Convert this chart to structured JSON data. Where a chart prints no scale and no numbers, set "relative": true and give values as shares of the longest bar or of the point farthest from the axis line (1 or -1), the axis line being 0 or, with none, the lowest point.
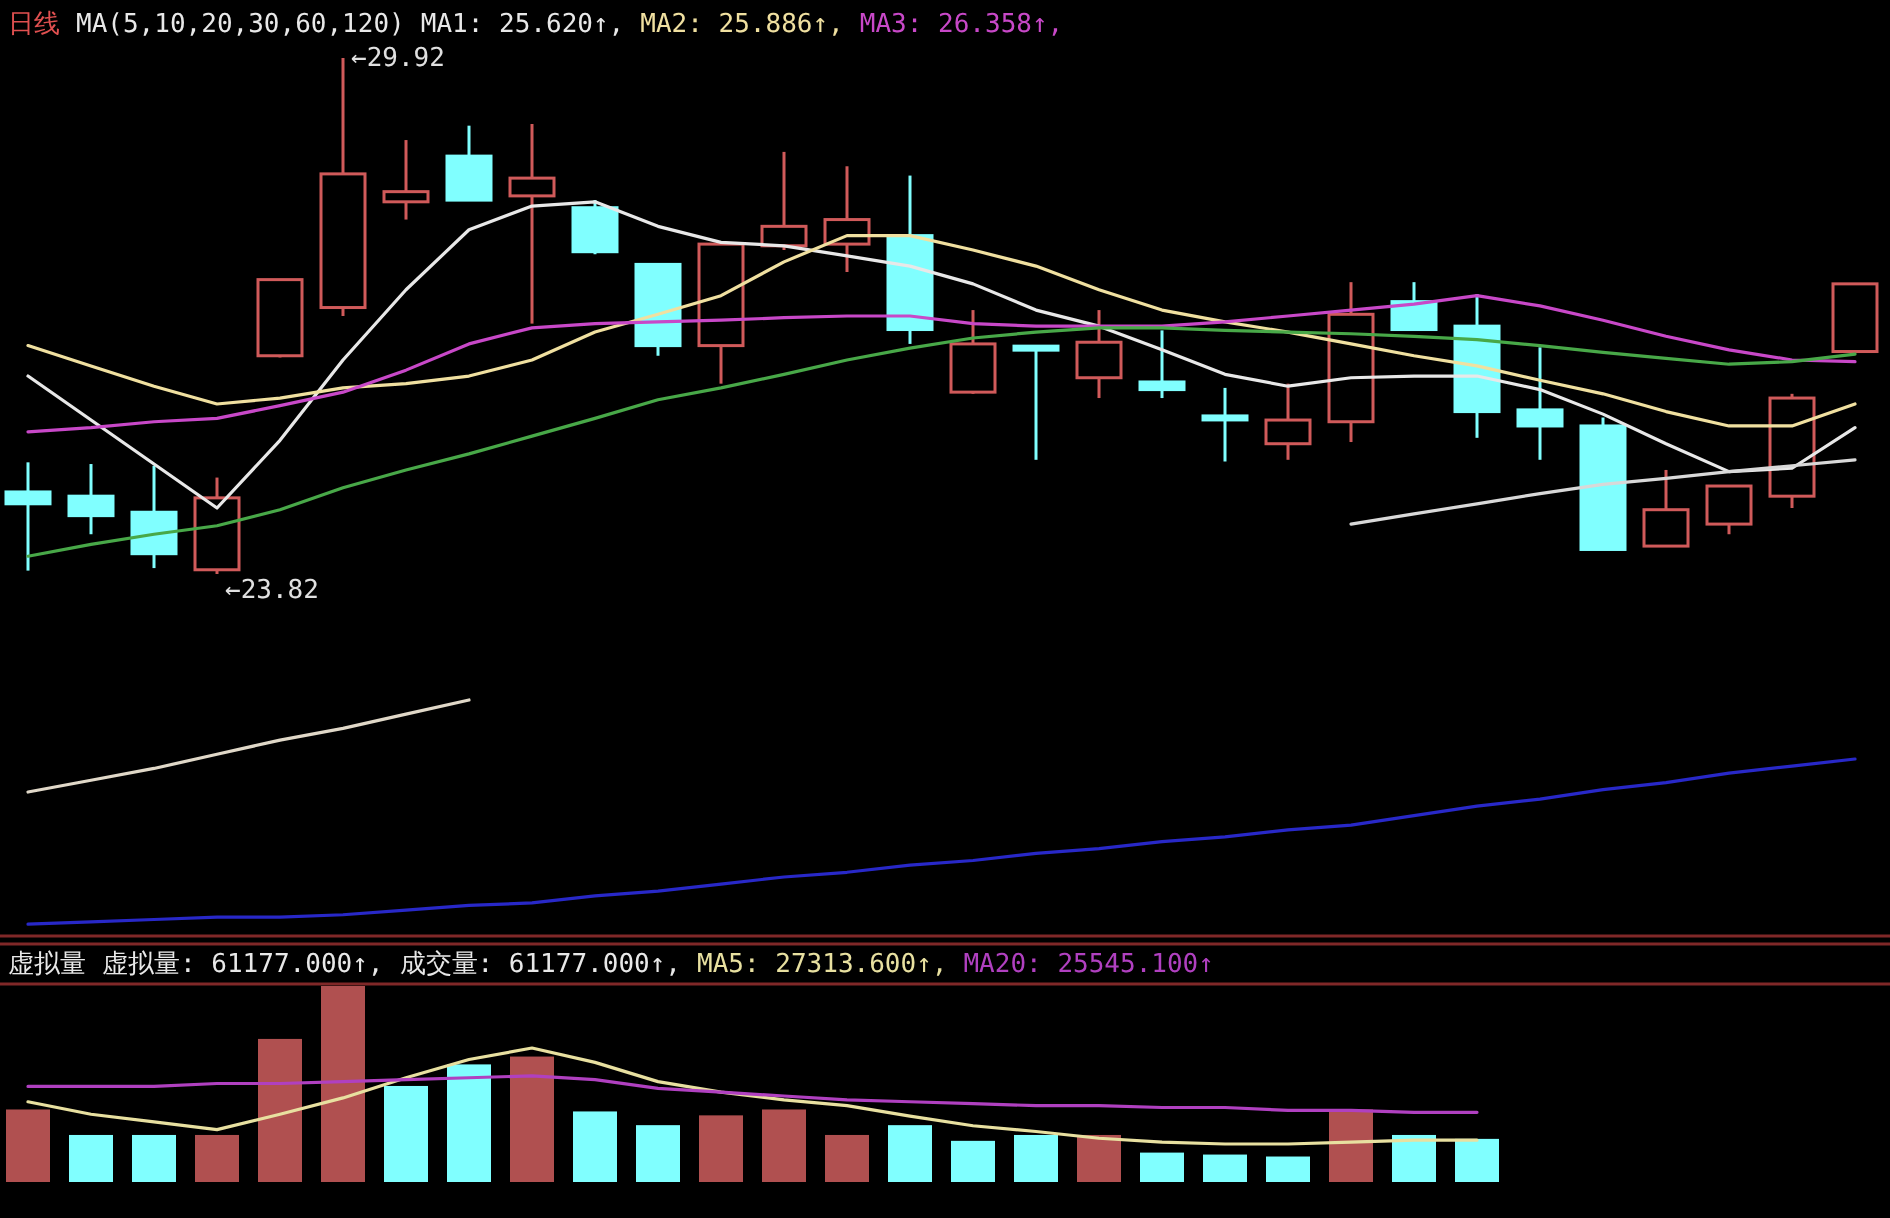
{
  "chart_data": [
    {
      "type": "candlestick",
      "title": "日线",
      "subtitle": "MA(5,10,20,30,60,120)",
      "legend": "top",
      "annotations": [
        "←29.92",
        "←23.82"
      ],
      "categories": [
        null,
        null,
        null,
        null,
        null,
        null,
        null,
        null,
        null,
        null,
        null,
        null,
        null,
        null,
        null,
        null,
        null,
        null,
        null,
        null,
        null,
        null,
        null,
        null,
        null,
        null,
        null,
        null,
        null,
        null
      ],
      "ohlc": [
        [
          24.79,
          25.14,
          23.86,
          24.65
        ],
        [
          24.74,
          25.12,
          24.29,
          24.51
        ],
        [
          24.55,
          25.1,
          23.89,
          24.06
        ],
        [
          23.87,
          24.96,
          23.82,
          24.72
        ],
        [
          26.4,
          27.3,
          26.38,
          27.3
        ],
        [
          26.97,
          29.92,
          26.87,
          28.55
        ],
        [
          28.22,
          28.95,
          28.01,
          28.34
        ],
        [
          28.76,
          29.12,
          28.24,
          28.24
        ],
        [
          28.29,
          29.14,
          26.78,
          28.5
        ],
        [
          28.15,
          28.24,
          27.6,
          27.63
        ],
        [
          27.48,
          27.48,
          26.4,
          26.52
        ],
        [
          26.52,
          27.72,
          26.07,
          27.72
        ],
        [
          27.7,
          28.81,
          27.65,
          27.93
        ],
        [
          27.72,
          28.64,
          27.39,
          28.01
        ],
        [
          27.82,
          28.53,
          26.54,
          26.71
        ],
        [
          25.97,
          26.94,
          25.95,
          26.54
        ],
        [
          26.5,
          26.5,
          25.17,
          26.48
        ],
        [
          26.14,
          26.94,
          25.9,
          26.56
        ],
        [
          26.09,
          26.7,
          25.9,
          26.0
        ],
        [
          25.68,
          26.02,
          25.15,
          25.65
        ],
        [
          25.36,
          26.07,
          25.17,
          25.64
        ],
        [
          25.62,
          27.27,
          25.38,
          26.89
        ],
        [
          27.04,
          27.27,
          26.71,
          26.71
        ],
        [
          26.75,
          27.13,
          25.43,
          25.74
        ],
        [
          25.76,
          26.5,
          25.17,
          25.57
        ],
        [
          25.57,
          25.67,
          24.11,
          24.11
        ],
        [
          24.15,
          25.05,
          24.15,
          24.58
        ],
        [
          24.41,
          24.86,
          24.29,
          24.86
        ],
        [
          24.74,
          25.95,
          24.6,
          25.9
        ],
        [
          26.45,
          27.25,
          26.45,
          27.25
        ]
      ],
      "series": [
        {
          "type": "line",
          "name": "MA1: 25.620↑,",
          "color": "#e8e8e8",
          "values": [
            26.16,
            25.64,
            25.12,
            24.6,
            25.4,
            26.35,
            27.18,
            27.89,
            28.17,
            28.22,
            27.93,
            27.74,
            27.7,
            27.58,
            27.46,
            27.25,
            26.94,
            26.75,
            26.47,
            26.18,
            26.04,
            26.14,
            26.16,
            26.16,
            26.0,
            25.71,
            25.36,
            25.03,
            25.07,
            25.55
          ]
        },
        {
          "type": "line",
          "name": "MA2: 25.886↑,",
          "color": "#f0e0a0",
          "values": [
            26.52,
            26.28,
            26.04,
            25.83,
            25.9,
            26.02,
            26.07,
            26.16,
            26.35,
            26.68,
            26.89,
            27.11,
            27.51,
            27.82,
            27.82,
            27.65,
            27.46,
            27.18,
            26.94,
            26.8,
            26.68,
            26.54,
            26.4,
            26.28,
            26.11,
            25.95,
            25.74,
            25.57,
            25.57,
            25.83
          ]
        },
        {
          "type": "line",
          "name": "MA3: 26.358↑,",
          "color": "#c848c8",
          "values": [
            25.5,
            25.55,
            25.62,
            25.66,
            25.81,
            25.97,
            26.23,
            26.54,
            26.73,
            26.78,
            26.8,
            26.82,
            26.85,
            26.87,
            26.87,
            26.78,
            26.75,
            26.75,
            26.75,
            26.8,
            26.87,
            26.94,
            27.01,
            27.11,
            26.99,
            26.82,
            26.63,
            26.47,
            26.35,
            26.33
          ]
        },
        {
          "type": "line",
          "color": "#48a848",
          "values": [
            24.03,
            24.17,
            24.29,
            24.39,
            24.58,
            24.84,
            25.05,
            25.24,
            25.45,
            25.66,
            25.88,
            26.02,
            26.18,
            26.35,
            26.49,
            26.61,
            26.68,
            26.73,
            26.73,
            26.7,
            26.68,
            26.66,
            26.63,
            26.59,
            26.52,
            26.44,
            26.37,
            26.3,
            26.33,
            26.42
          ]
        },
        {
          "type": "line",
          "color": "#d8d8d8",
          "values": [
            null,
            null,
            null,
            null,
            null,
            null,
            null,
            null,
            null,
            null,
            null,
            null,
            null,
            null,
            null,
            null,
            null,
            null,
            null,
            null,
            null,
            24.41,
            24.53,
            24.65,
            24.77,
            24.88,
            24.95,
            25.03,
            25.1,
            25.17
          ]
        }
      ]
    },
    {
      "type": "line",
      "relative": true,
      "categories": [
        null,
        null,
        null,
        null,
        null,
        null,
        null,
        null,
        null,
        null,
        null,
        null,
        null,
        null,
        null,
        null,
        null,
        null,
        null,
        null,
        null,
        null,
        null,
        null,
        null,
        null,
        null,
        null,
        null,
        null
      ],
      "series": [
        {
          "color": "#2828c8",
          "values": [
            0.05,
            0.06,
            0.07,
            0.08,
            0.08,
            0.09,
            0.11,
            0.13,
            0.14,
            0.17,
            0.19,
            0.22,
            0.25,
            0.27,
            0.3,
            0.32,
            0.35,
            0.37,
            0.4,
            0.42,
            0.45,
            0.47,
            0.51,
            0.55,
            0.58,
            0.62,
            0.65,
            0.69,
            0.72,
            0.75
          ]
        },
        {
          "color": "#e0d8c8",
          "values": [
            0.61,
            0.66,
            0.71,
            0.77,
            0.83,
            0.88,
            0.94,
            1,
            null,
            null,
            null,
            null,
            null,
            null,
            null,
            null,
            null,
            null,
            null,
            null,
            null,
            null,
            null,
            null,
            null,
            null,
            null,
            null,
            null,
            null
          ]
        }
      ]
    },
    {
      "type": "bar",
      "title": "虚拟量",
      "relative": true,
      "annotations": [
        "虚拟量: 61177.000↑,",
        "成交量: 61177.000↑,"
      ],
      "categories": [
        null,
        null,
        null,
        null,
        null,
        null,
        null,
        null,
        null,
        null,
        null,
        null,
        null,
        null,
        null,
        null,
        null,
        null,
        null,
        null,
        null,
        null,
        null,
        null
      ],
      "colors": [
        "#b05050",
        "#80ffff",
        "#80ffff",
        "#b05050",
        "#b05050",
        "#b05050",
        "#80ffff",
        "#80ffff",
        "#b05050",
        "#80ffff",
        "#80ffff",
        "#b05050",
        "#b05050",
        "#b05050",
        "#80ffff",
        "#80ffff",
        "#80ffff",
        "#b05050",
        "#80ffff",
        "#80ffff",
        "#80ffff",
        "#b05050",
        "#80ffff",
        "#80ffff"
      ],
      "values": [
        0.37,
        0.24,
        0.24,
        0.24,
        0.73,
        1,
        0.49,
        0.6,
        0.64,
        0.36,
        0.29,
        0.34,
        0.37,
        0.24,
        0.29,
        0.21,
        0.24,
        0.24,
        0.15,
        0.14,
        0.13,
        0.37,
        0.24,
        0.22
      ]
    },
    {
      "type": "line",
      "relative": true,
      "categories": [
        null,
        null,
        null,
        null,
        null,
        null,
        null,
        null,
        null,
        null,
        null,
        null,
        null,
        null,
        null,
        null,
        null,
        null,
        null,
        null,
        null,
        null,
        null,
        null
      ],
      "series": [
        {
          "name": "MA5: 27313.600↑,",
          "color": "#e8e0a0",
          "values": [
            0.44,
            0.31,
            0.23,
            0.15,
            0.31,
            0.48,
            0.69,
            0.88,
            1,
            0.85,
            0.65,
            0.54,
            0.46,
            0.4,
            0.29,
            0.19,
            0.13,
            0.06,
            0.02,
            0,
            0,
            0.02,
            0.04,
            0.04
          ]
        },
        {
          "name": "MA20: 25545.100↑",
          "color": "#b040c0",
          "values": [
            0.6,
            0.6,
            0.6,
            0.63,
            0.63,
            0.65,
            0.67,
            0.69,
            0.71,
            0.67,
            0.58,
            0.54,
            0.5,
            0.46,
            0.44,
            0.42,
            0.4,
            0.4,
            0.38,
            0.38,
            0.35,
            0.35,
            0.33,
            0.33
          ]
        }
      ]
    }
  ]
}
